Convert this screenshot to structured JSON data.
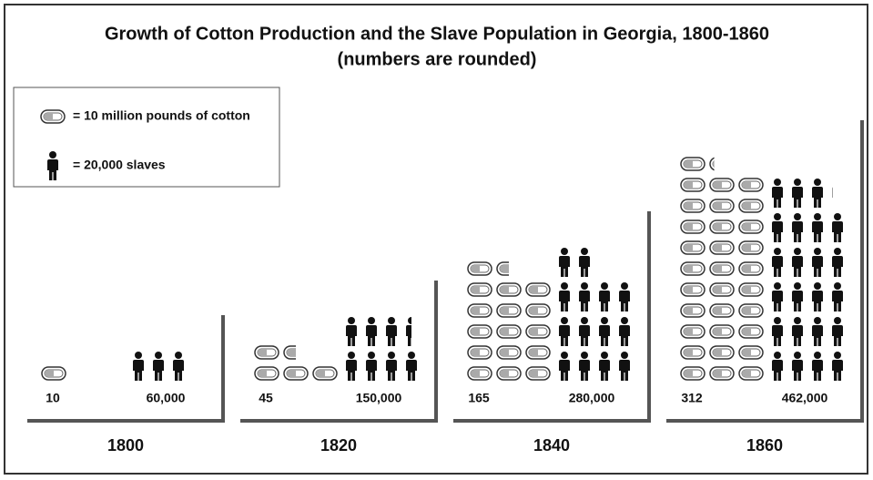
{
  "chart_data": {
    "type": "pictograph",
    "title": "Growth of Cotton Production and the Slave Population in Georgia, 1800-1860",
    "subtitle": "(numbers are rounded)",
    "categories": [
      "1800",
      "1820",
      "1840",
      "1860"
    ],
    "series": [
      {
        "name": "= 10 million pounds of cotton",
        "icon": "cotton",
        "unit": 10,
        "color": "#111111",
        "values": [
          10,
          45,
          165,
          312
        ]
      },
      {
        "name": "= 20,000 slaves",
        "icon": "person",
        "unit": 20000,
        "color": "#111111",
        "values": [
          60000,
          150000,
          280000,
          462000
        ],
        "value_labels": [
          "60,000",
          "150,000",
          "280,000",
          "462,000"
        ]
      }
    ]
  }
}
